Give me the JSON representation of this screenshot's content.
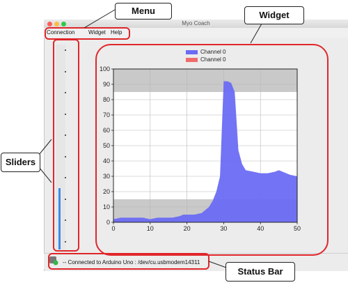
{
  "window": {
    "title": "Myo Coach"
  },
  "menu": {
    "items": [
      "Connection",
      "Widget",
      "Help"
    ]
  },
  "legend": [
    {
      "label": "Channel 0",
      "color": "#6b6bf4"
    },
    {
      "label": "Channel 0",
      "color": "#f06b6b"
    }
  ],
  "chart_data": {
    "type": "area",
    "x": [
      0,
      2,
      4,
      6,
      8,
      10,
      12,
      14,
      16,
      18,
      19,
      20,
      22,
      24,
      26,
      27,
      28,
      29,
      30,
      31,
      32,
      33,
      34,
      35,
      36,
      38,
      40,
      42,
      44,
      45,
      46,
      48,
      50
    ],
    "series": [
      {
        "name": "Channel 0",
        "values": [
          2,
          3,
          3,
          3,
          3,
          2,
          3,
          3,
          3,
          4,
          5,
          5,
          5,
          6,
          10,
          14,
          20,
          30,
          92,
          92,
          91,
          85,
          47,
          38,
          34,
          33,
          32,
          32,
          33,
          34,
          33,
          31,
          30
        ]
      }
    ],
    "xlim": [
      0,
      50
    ],
    "ylim": [
      0,
      100
    ],
    "xticks": [
      0,
      10,
      20,
      30,
      40,
      50
    ],
    "yticks": [
      0,
      10,
      20,
      30,
      40,
      50,
      60,
      70,
      80,
      90,
      100
    ],
    "bands": [
      {
        "from": 85,
        "to": 100,
        "color": "#c9c9c9"
      },
      {
        "from": 0,
        "to": 15,
        "color": "#c9c9c9"
      }
    ],
    "grid": true,
    "fill_color": "#6b6bf4"
  },
  "sliders": {
    "levels": [
      0.3
    ]
  },
  "status": {
    "text": "-- Connected to Arduino Uno : /dev/cu.usbmodem14311"
  },
  "callouts": {
    "menu": "Menu",
    "widget": "Widget",
    "sliders": "Sliders",
    "status_bar": "Status Bar"
  }
}
